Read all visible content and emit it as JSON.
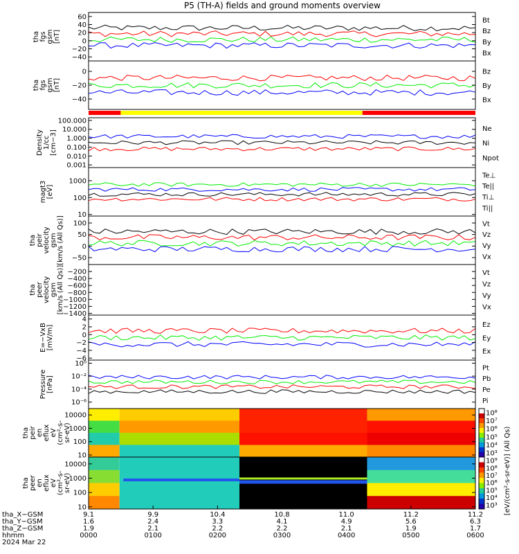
{
  "title": "P5 (TH-A) fields and ground moments overview",
  "colors": {
    "black": "#000000",
    "red": "#ff0000",
    "green": "#00ee00",
    "blue": "#0000ff"
  },
  "chart_data": {
    "type": "line",
    "panels": [
      {
        "id": "fgs_gsm",
        "ylabel": [
          "tha",
          "fgs",
          "gsm",
          "[nT]"
        ],
        "ylim": [
          -50,
          70
        ],
        "yticks": [
          {
            "v": 60,
            "t": "60"
          },
          {
            "v": 40,
            "t": "40"
          },
          {
            "v": 20,
            "t": "20"
          },
          {
            "v": 0,
            "t": "0"
          },
          {
            "v": -20,
            "t": "−20"
          },
          {
            "v": -40,
            "t": "−40"
          }
        ],
        "legend": [
          {
            "name": "Bt",
            "color": "#000000"
          },
          {
            "name": "Bz",
            "color": "#ff0000"
          },
          {
            "name": "By",
            "color": "#00ee00"
          },
          {
            "name": "Bx",
            "color": "#0000ff"
          }
        ]
      },
      {
        "id": "fgs_gse",
        "ylabel": [
          "tha",
          "fgs",
          "gsm",
          "[nT]"
        ],
        "ylim": [
          -55,
          15
        ],
        "yticks": [
          {
            "v": 0,
            "t": "0"
          },
          {
            "v": -20,
            "t": "−20"
          },
          {
            "v": -40,
            "t": "−40"
          }
        ],
        "legend": [
          {
            "name": "Bz",
            "color": "#ff0000"
          },
          {
            "name": "By",
            "color": "#00ee00"
          },
          {
            "name": "Bx",
            "color": "#0000ff"
          }
        ]
      },
      {
        "id": "density",
        "ylabel": [
          "Density",
          "1/cc",
          "[cm−3]"
        ],
        "ylim": [
          0.0005,
          200
        ],
        "log": true,
        "yticks": [
          {
            "v": 100,
            "t": "100.000"
          },
          {
            "v": 10,
            "t": "10.000"
          },
          {
            "v": 1,
            "t": "1.000"
          },
          {
            "v": 0.1,
            "t": "0.100"
          },
          {
            "v": 0.01,
            "t": "0.010"
          },
          {
            "v": 0.001,
            "t": "0.001"
          }
        ],
        "legend": [
          {
            "name": "Ne",
            "color": "#ff0000"
          },
          {
            "name": "Ni",
            "color": "#000000"
          },
          {
            "name": "Npot",
            "color": "#0000ff"
          }
        ]
      },
      {
        "id": "temp",
        "ylabel": [
          "magt3",
          "[eV]"
        ],
        "ylim": [
          8,
          6000
        ],
        "log": true,
        "yticks": [
          {
            "v": 1000,
            "t": "1000"
          },
          {
            "v": 100,
            "t": "100"
          },
          {
            "v": 10,
            "t": "10"
          }
        ],
        "legend": [
          {
            "name": "Te⊥",
            "color": "#ff0000"
          },
          {
            "name": "Te||",
            "color": "#000000"
          },
          {
            "name": "Ti⊥",
            "color": "#0000ff"
          },
          {
            "name": "Ti||",
            "color": "#00ee00"
          }
        ]
      },
      {
        "id": "peir_vel",
        "ylabel": [
          "tha",
          "peir",
          "velocity",
          "gsm",
          "[km/s (All Qs)]"
        ],
        "ylim": [
          -80,
          130
        ],
        "yticks": [
          {
            "v": 100,
            "t": "100"
          },
          {
            "v": 50,
            "t": "50"
          },
          {
            "v": 0,
            "t": "0"
          },
          {
            "v": -50,
            "t": "−50"
          }
        ],
        "legend": [
          {
            "name": "Vt",
            "color": "#000000"
          },
          {
            "name": "Vz",
            "color": "#ff0000"
          },
          {
            "name": "Vy",
            "color": "#00ee00"
          },
          {
            "name": "Vx",
            "color": "#0000ff"
          }
        ]
      },
      {
        "id": "peer_vel",
        "ylabel": [
          "tha",
          "peer",
          "velocity",
          "gsm",
          "[km/s (All Qs)]"
        ],
        "ylim": [
          -1450,
          0
        ],
        "yticks": [
          {
            "v": -200,
            "t": "−200"
          },
          {
            "v": -400,
            "t": "−400"
          },
          {
            "v": -600,
            "t": "−600"
          },
          {
            "v": -800,
            "t": "−800"
          },
          {
            "v": -1000,
            "t": "−1000"
          },
          {
            "v": -1200,
            "t": "−1200"
          },
          {
            "v": -1400,
            "t": "−1400"
          }
        ],
        "legend": [
          {
            "name": "Vt",
            "color": "#000000"
          },
          {
            "name": "Vz",
            "color": "#ff0000"
          },
          {
            "name": "Vy",
            "color": "#00ee00"
          },
          {
            "name": "Vx",
            "color": "#0000ff"
          }
        ]
      },
      {
        "id": "efield",
        "ylabel": [
          "E=−VxB",
          "[mV/m]"
        ],
        "ylim": [
          -6.5,
          5
        ],
        "yticks": [
          {
            "v": 4,
            "t": "4"
          },
          {
            "v": 2,
            "t": "2"
          },
          {
            "v": 0,
            "t": "0"
          },
          {
            "v": -2,
            "t": "−2"
          },
          {
            "v": -4,
            "t": "−4"
          },
          {
            "v": -6,
            "t": "−6"
          }
        ],
        "legend": [
          {
            "name": "Ez",
            "color": "#ff0000"
          },
          {
            "name": "Ey",
            "color": "#00ee00"
          },
          {
            "name": "Ex",
            "color": "#0000ff"
          }
        ]
      },
      {
        "id": "pressure",
        "ylabel": [
          "Pressure",
          "[nPa]"
        ],
        "ylim": [
          1e-07,
          3
        ],
        "log": true,
        "yticks": [
          {
            "v": 1,
            "t": "10⁰"
          },
          {
            "v": 0.01,
            "t": "10⁻²"
          },
          {
            "v": 0.0001,
            "t": "10⁻⁴"
          },
          {
            "v": 1e-06,
            "t": "10⁻⁶"
          }
        ],
        "legend": [
          {
            "name": "Pt",
            "color": "#000000"
          },
          {
            "name": "Pb",
            "color": "#ff0000"
          },
          {
            "name": "Pe",
            "color": "#00ee00"
          },
          {
            "name": "Pi",
            "color": "#0000ff"
          }
        ]
      },
      {
        "id": "peir_en",
        "ylabel": [
          "tha",
          "peir",
          "en",
          "eflux",
          "eV",
          "(cm²-s-",
          "sr-eV)"
        ],
        "ylim": [
          7,
          30000
        ],
        "log": true,
        "yticks": [
          {
            "v": 10000,
            "t": "10000"
          },
          {
            "v": 1000,
            "t": "1000"
          },
          {
            "v": 100,
            "t": "100"
          },
          {
            "v": 10,
            "t": "10"
          }
        ],
        "cbar": {
          "ticks": [
            "10⁸",
            "10⁷",
            "10⁶",
            "10⁵",
            "10⁴",
            "10³"
          ]
        }
      },
      {
        "id": "peer_en",
        "ylabel": [
          "tha",
          "peer",
          "en",
          "eflux",
          "eV",
          "(cm²-s-",
          "sr-eV)"
        ],
        "ylim": [
          7,
          30000
        ],
        "log": true,
        "yticks": [
          {
            "v": 10000,
            "t": "10000"
          },
          {
            "v": 1000,
            "t": "1000"
          },
          {
            "v": 100,
            "t": "100"
          },
          {
            "v": 10,
            "t": "10"
          }
        ],
        "cbar": {
          "ticks": [
            "10⁹",
            "10⁸",
            "10⁷",
            "10⁶",
            "10⁵",
            "10⁴",
            "10³"
          ]
        }
      }
    ],
    "cbar_label": "[eV/(cm²-s-sr-eV)] (All Qs)",
    "mode_bar": [
      {
        "from": 0,
        "to": 0.083,
        "color": "#ff0000"
      },
      {
        "from": 0.083,
        "to": 0.708,
        "color": "#ffff00"
      },
      {
        "from": 0.708,
        "to": 1,
        "color": "#ff0000"
      }
    ],
    "x_axis": {
      "rows": [
        {
          "label": "tha_X−GSM",
          "values": [
            "9.1",
            "9.9",
            "10.4",
            "10.8",
            "11.0",
            "11.2",
            "11.2"
          ]
        },
        {
          "label": "tha_Y−GSM",
          "values": [
            "1.6",
            "2.4",
            "3.3",
            "4.1",
            "4.9",
            "5.6",
            "6.3"
          ]
        },
        {
          "label": "tha_Z−GSM",
          "values": [
            "1.9",
            "2.1",
            "2.2",
            "2.2",
            "2.1",
            "1.9",
            "1.7"
          ]
        },
        {
          "label": "hhmm",
          "values": [
            "0000",
            "0100",
            "0200",
            "0300",
            "0400",
            "0500",
            "0600"
          ]
        }
      ],
      "date": "2024 Mar 22"
    }
  }
}
